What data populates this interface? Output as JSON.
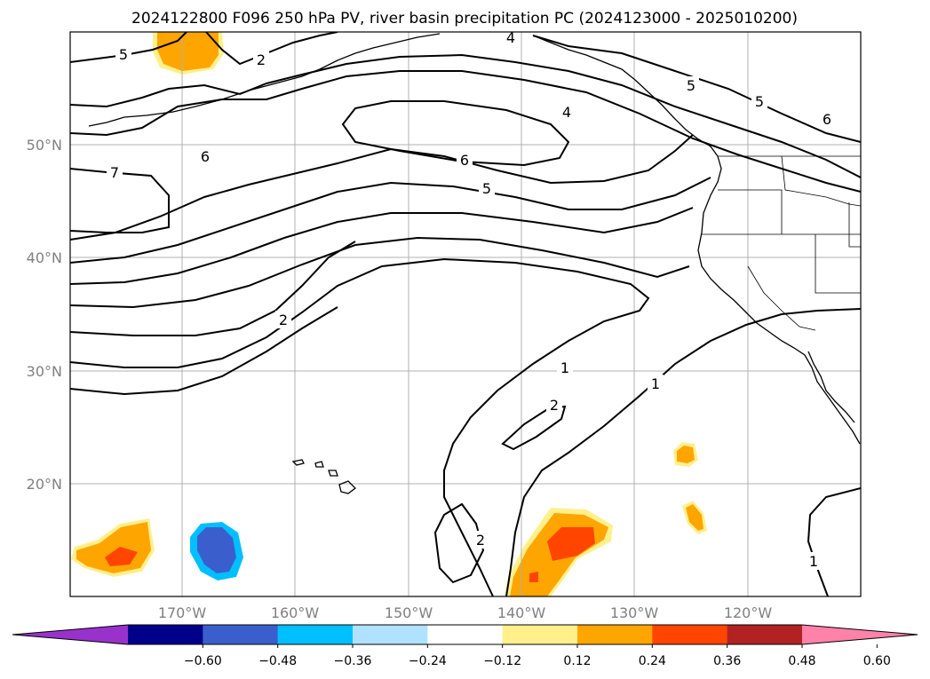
{
  "title": "2024122800 F096 250 hPa PV, river basin precipitation PC (2024123000 - 2025010200)",
  "map": {
    "lon_range": [
      -180,
      -110
    ],
    "lat_range": [
      10,
      60
    ],
    "lat_labels": [
      "50°N",
      "40°N",
      "30°N",
      "20°N"
    ],
    "lon_labels": [
      "170°W",
      "160°W",
      "150°W",
      "140°W",
      "130°W",
      "120°W"
    ]
  },
  "pv_contour_labels": [
    "5",
    "2",
    "4",
    "4",
    "5",
    "6",
    "6",
    "6",
    "7",
    "5",
    "2",
    "1",
    "1",
    "2",
    "2",
    "1"
  ],
  "colorbar": {
    "colors": [
      "#9932cc",
      "#00008b",
      "#3a5fcd",
      "#00bfff",
      "#b0e2ff",
      "#ffffff",
      "#fff08c",
      "#ffa500",
      "#ff4500",
      "#b22222",
      "#ff82ab"
    ],
    "tick_labels": [
      "−0.60",
      "−0.48",
      "−0.36",
      "−0.24",
      "−0.12",
      "0.12",
      "0.24",
      "0.36",
      "0.48",
      "0.60"
    ]
  }
}
